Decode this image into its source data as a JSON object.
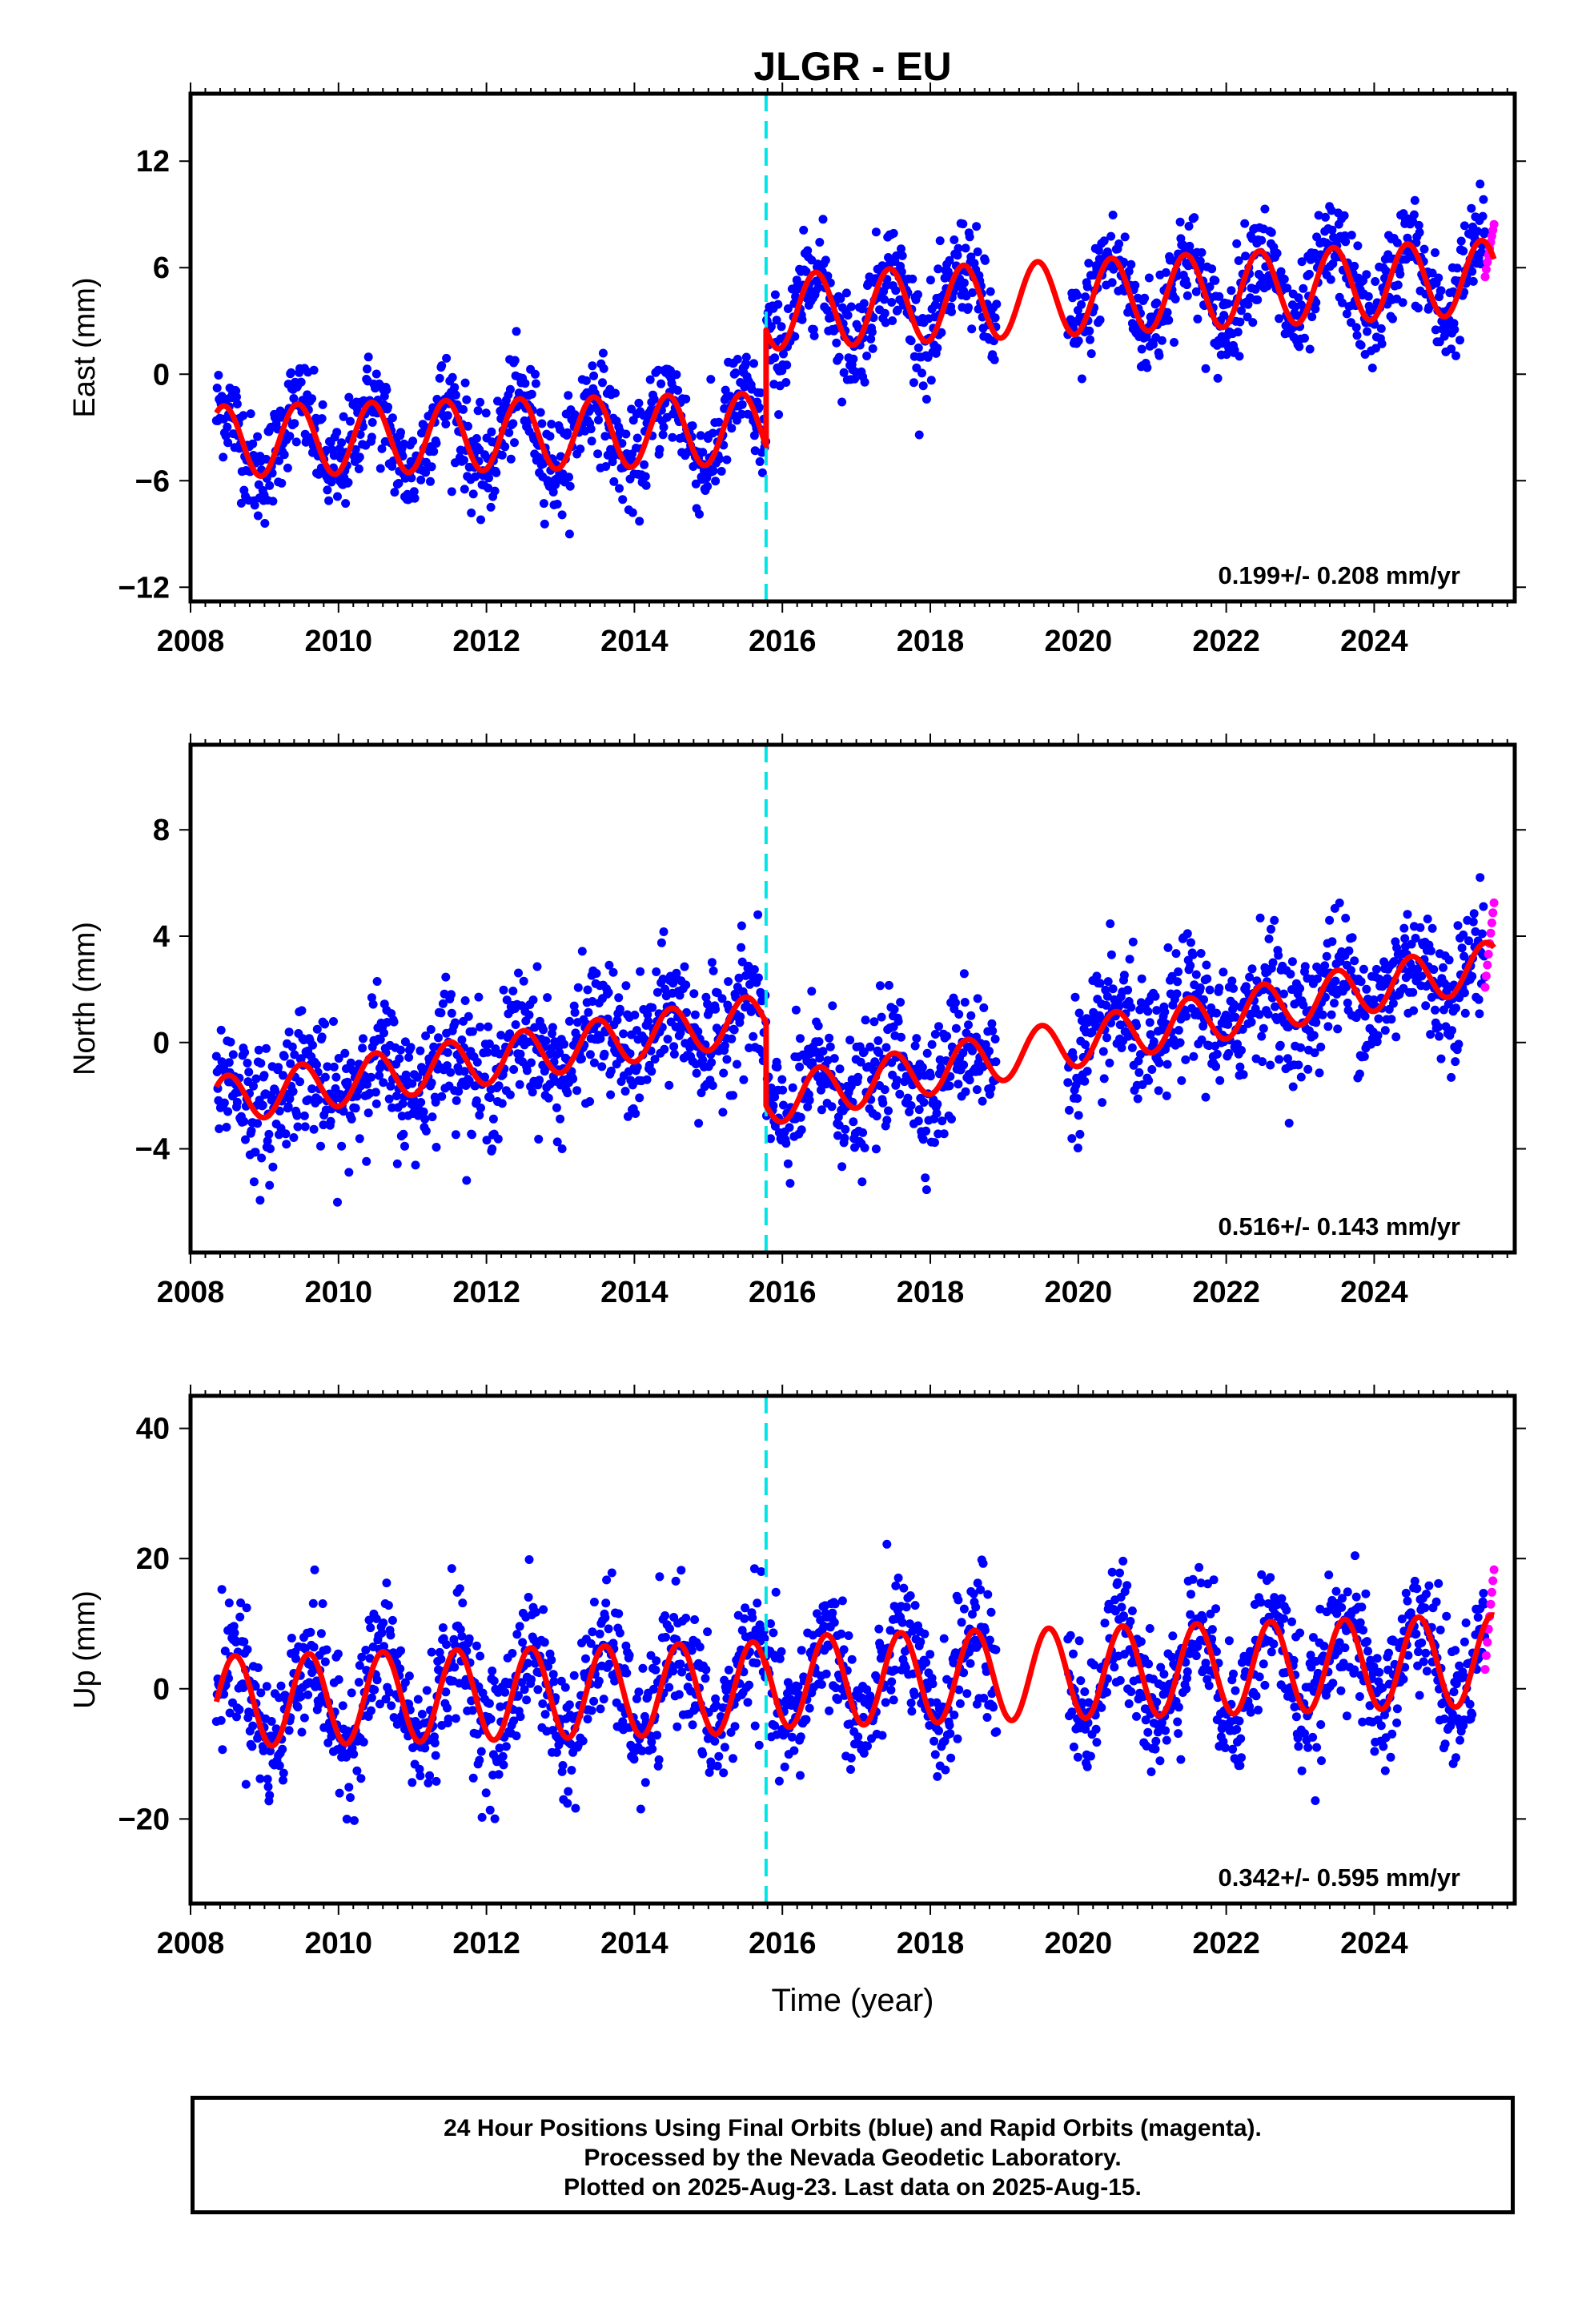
{
  "title": "JLGR - EU",
  "x_axis": {
    "label": "Time (year)",
    "range": [
      2008,
      2025.9
    ],
    "ticks": [
      2008,
      2010,
      2012,
      2014,
      2016,
      2018,
      2020,
      2022,
      2024
    ],
    "tick_labels": [
      "2008",
      "2010",
      "2012",
      "2014",
      "2016",
      "2018",
      "2020",
      "2022",
      "2024"
    ]
  },
  "colors": {
    "final_orbits": "#0000ff",
    "rapid_orbits": "#ff00ff",
    "model": "#ff0000",
    "equipment_change": "#00e5e5"
  },
  "caption": {
    "line1": "24 Hour Positions Using Final Orbits (blue) and Rapid Orbits (magenta).",
    "line2": "Processed by the Nevada Geodetic Laboratory.",
    "line3": "Plotted on 2025-Aug-23. Last data on 2025-Aug-15."
  },
  "chart_data": [
    {
      "type": "scatter",
      "panel": "east",
      "ylabel": "East (mm)",
      "ylim": [
        -12.8,
        15.8
      ],
      "yticks": [
        -12,
        -6,
        0,
        6,
        12
      ],
      "rate_label": "0.199+/- 0.208 mm/yr",
      "equipment_change_year": 2015.78,
      "data_span": [
        2008.35,
        2025.62
      ],
      "gap": [
        2018.9,
        2019.85
      ],
      "rapid_orbit_span": [
        2025.5,
        2025.62
      ],
      "series": [
        {
          "name": "final orbits",
          "note": "daily positions, approximated by envelope of seasonal model plus scatter",
          "scatter_sd": 1.4
        },
        {
          "name": "model",
          "segments": [
            {
              "x_start": 2008.35,
              "x_end": 2015.78,
              "offset": -3.8,
              "trend": 0.1,
              "amplitude": 2.0,
              "phase_peak": 0.45
            },
            {
              "x_start": 2015.78,
              "x_end": 2025.62,
              "offset": 3.5,
              "trend": 0.2,
              "amplitude": 2.1,
              "phase_peak": 0.45
            }
          ]
        }
      ]
    },
    {
      "type": "scatter",
      "panel": "north",
      "ylabel": "North (mm)",
      "ylim": [
        -7.9,
        11.2
      ],
      "yticks": [
        -4,
        0,
        4,
        8
      ],
      "rate_label": "0.516+/- 0.143 mm/yr",
      "equipment_change_year": 2015.78,
      "data_span": [
        2008.35,
        2025.62
      ],
      "gap": [
        2018.9,
        2019.85
      ],
      "rapid_orbit_span": [
        2025.5,
        2025.62
      ],
      "series": [
        {
          "name": "final orbits",
          "scatter_sd": 1.2
        },
        {
          "name": "model",
          "segments": [
            {
              "x_start": 2008.35,
              "x_end": 2015.78,
              "offset": -2.2,
              "trend": 0.42,
              "amplitude": 0.9,
              "phase_peak": 0.5
            },
            {
              "x_start": 2015.78,
              "x_end": 2025.62,
              "offset": -2.2,
              "trend": 0.52,
              "amplitude": 0.9,
              "phase_peak": 0.5
            }
          ]
        }
      ]
    },
    {
      "type": "scatter",
      "panel": "up",
      "ylabel": "Up (mm)",
      "ylim": [
        -33,
        45
      ],
      "yticks": [
        -20,
        0,
        20,
        40
      ],
      "rate_label": "0.342+/- 0.595 mm/yr",
      "equipment_change_year": 2015.78,
      "data_span": [
        2008.35,
        2025.62
      ],
      "gap": [
        2018.9,
        2019.85
      ],
      "rapid_orbit_span": [
        2025.5,
        2025.62
      ],
      "series": [
        {
          "name": "final orbits",
          "scatter_sd": 5.0
        },
        {
          "name": "model",
          "segments": [
            {
              "x_start": 2008.35,
              "x_end": 2015.78,
              "offset": -2.0,
              "trend": 0.3,
              "amplitude": 7.0,
              "phase_peak": 0.6
            },
            {
              "x_start": 2015.78,
              "x_end": 2025.62,
              "offset": 1.0,
              "trend": 0.34,
              "amplitude": 7.0,
              "phase_peak": 0.6
            }
          ]
        }
      ]
    }
  ]
}
